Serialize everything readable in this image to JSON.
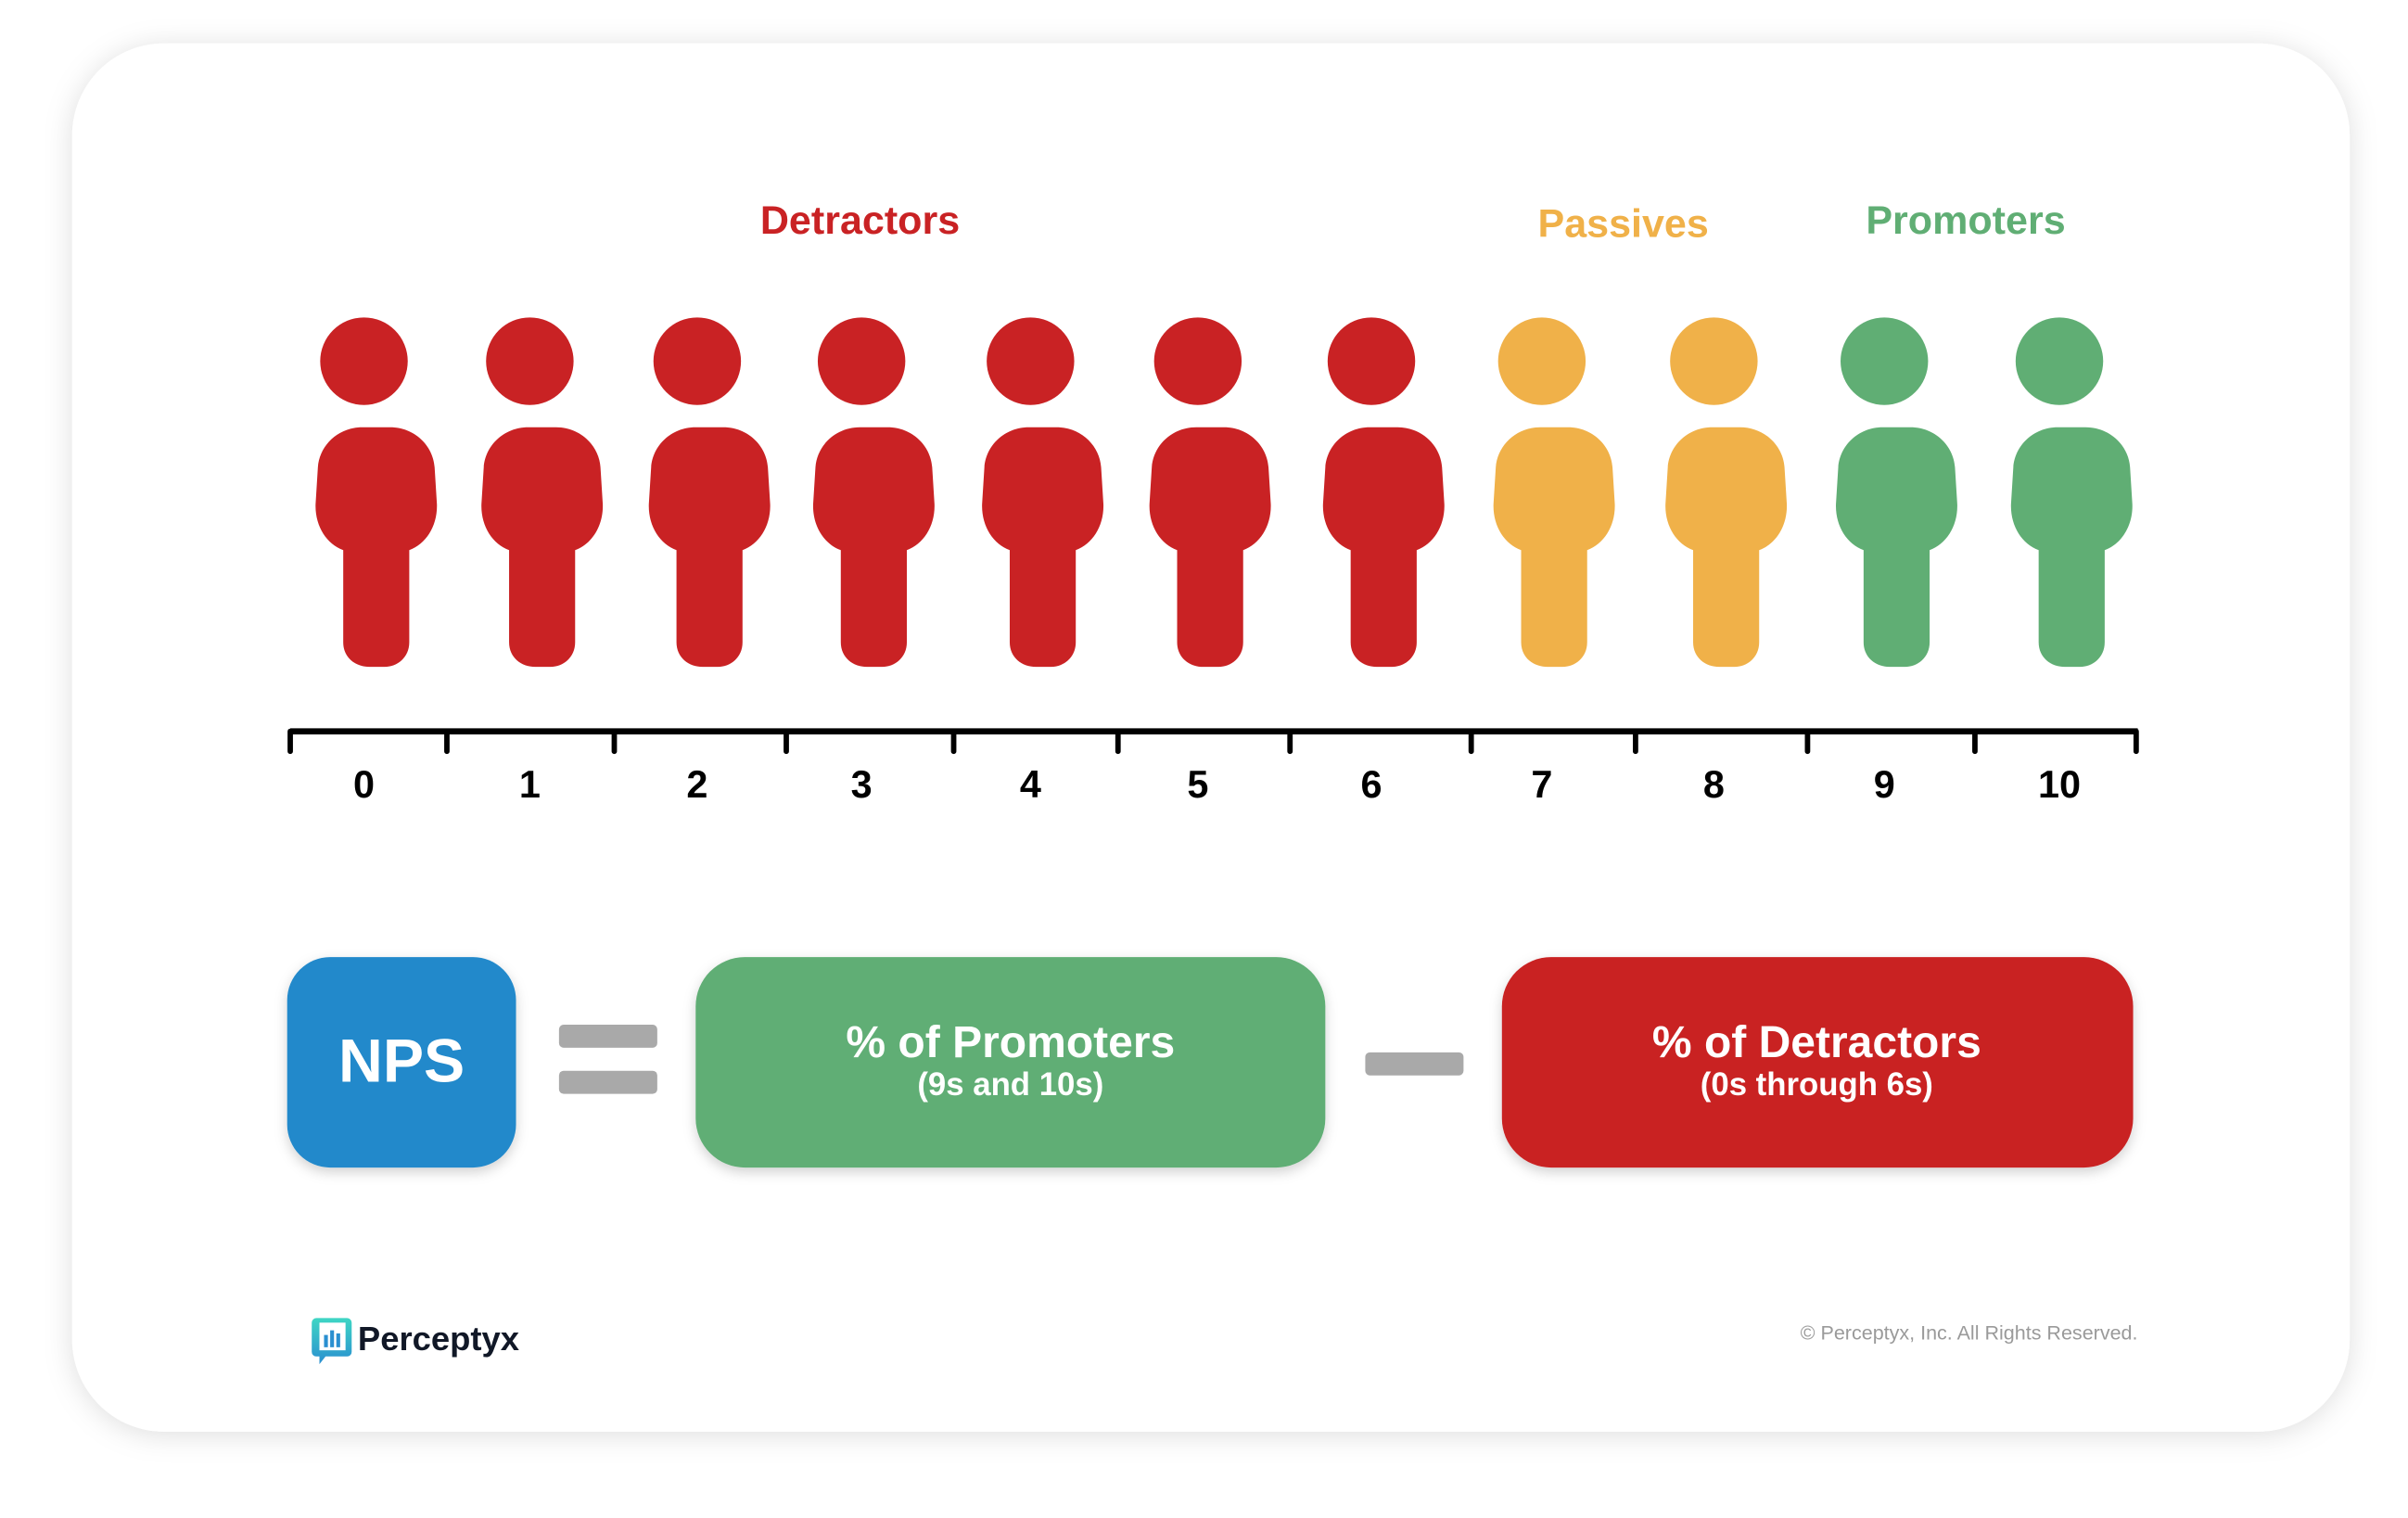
{
  "categories": {
    "detractors": {
      "label": "Detractors",
      "color": "#C92224",
      "scores": [
        0,
        1,
        2,
        3,
        4,
        5,
        6
      ]
    },
    "passives": {
      "label": "Passives",
      "color": "#F0B149",
      "scores": [
        7,
        8
      ]
    },
    "promoters": {
      "label": "Promoters",
      "color": "#60AE74",
      "scores": [
        9,
        10
      ]
    }
  },
  "scale": [
    "0",
    "1",
    "2",
    "3",
    "4",
    "5",
    "6",
    "7",
    "8",
    "9",
    "10"
  ],
  "formula": {
    "nps": {
      "label": "NPS",
      "color": "#2189CB"
    },
    "promoters": {
      "title": "% of Promoters",
      "subtitle": "(9s and 10s)"
    },
    "detractors": {
      "title": "% of Detractors",
      "subtitle": "(0s through 6s)"
    },
    "operator_color": "#A9A9A9"
  },
  "footer": {
    "brand": "Perceptyx",
    "copyright": "© Perceptyx, Inc. All Rights Reserved."
  }
}
